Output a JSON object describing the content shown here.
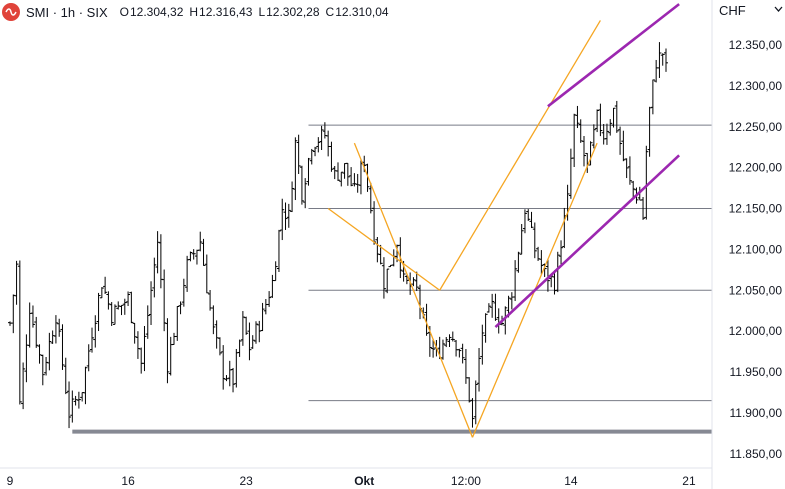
{
  "header": {
    "symbol": "SMI · 1h · SIX",
    "ohlc": [
      {
        "k": "O",
        "v": "12.304,32"
      },
      {
        "k": "H",
        "v": "12.316,43"
      },
      {
        "k": "L",
        "v": "12.302,28"
      },
      {
        "k": "C",
        "v": "12.310,04"
      }
    ],
    "currency": "CHF"
  },
  "colors": {
    "candle": "#000000",
    "hline": "#787b86",
    "support": "#868993",
    "orange": "#f5a623",
    "purple": "#9c27b0",
    "logo": "#e0433a"
  },
  "chart_data": {
    "type": "ohlc",
    "x_unit": "trading hour index (9 bars per day)",
    "x_range": [
      0,
      198
    ],
    "ylim": [
      11830,
      12400
    ],
    "y_ticks": [
      "12.350,00",
      "12.300,00",
      "12.250,00",
      "12.200,00",
      "12.150,00",
      "12.100,00",
      "12.050,00",
      "12.000,00",
      "11.950,00",
      "11.900,00",
      "11.850,00"
    ],
    "y_tick_values": [
      12350,
      12300,
      12250,
      12200,
      12150,
      12100,
      12050,
      12000,
      11950,
      11900,
      11850
    ],
    "x_ticks": [
      {
        "label": "9",
        "x": 0
      },
      {
        "label": "16",
        "x": 36
      },
      {
        "label": "23",
        "x": 72
      },
      {
        "label": "Okt",
        "x": 108
      },
      {
        "label": "12:00",
        "x": 139
      },
      {
        "label": "14",
        "x": 171
      },
      {
        "label": "21",
        "x": 207
      }
    ],
    "anchors": [
      [
        0,
        12010
      ],
      [
        2,
        12080
      ],
      [
        3,
        11910
      ],
      [
        6,
        12030
      ],
      [
        10,
        11950
      ],
      [
        14,
        12020
      ],
      [
        18,
        11900
      ],
      [
        22,
        11930
      ],
      [
        25,
        12000
      ],
      [
        28,
        12060
      ],
      [
        31,
        12020
      ],
      [
        36,
        12040
      ],
      [
        40,
        11960
      ],
      [
        45,
        12110
      ],
      [
        48,
        11960
      ],
      [
        54,
        12080
      ],
      [
        58,
        12110
      ],
      [
        62,
        12000
      ],
      [
        65,
        11950
      ],
      [
        68,
        11940
      ],
      [
        71,
        12010
      ],
      [
        73,
        11980
      ],
      [
        77,
        12020
      ],
      [
        80,
        12060
      ],
      [
        83,
        12150
      ],
      [
        85,
        12140
      ],
      [
        87,
        12230
      ],
      [
        89,
        12170
      ],
      [
        92,
        12230
      ],
      [
        96,
        12240
      ],
      [
        99,
        12190
      ],
      [
        102,
        12200
      ],
      [
        105,
        12170
      ],
      [
        108,
        12210
      ],
      [
        111,
        12120
      ],
      [
        114,
        12060
      ],
      [
        118,
        12110
      ],
      [
        120,
        12060
      ],
      [
        124,
        12050
      ],
      [
        127,
        11990
      ],
      [
        130,
        11970
      ],
      [
        134,
        12000
      ],
      [
        137,
        11980
      ],
      [
        140,
        11920
      ],
      [
        141,
        11890
      ],
      [
        142,
        11930
      ],
      [
        144,
        12000
      ],
      [
        147,
        12030
      ],
      [
        150,
        12010
      ],
      [
        153,
        12050
      ],
      [
        157,
        12150
      ],
      [
        160,
        12100
      ],
      [
        163,
        12070
      ],
      [
        166,
        12060
      ],
      [
        168,
        12110
      ],
      [
        170,
        12160
      ],
      [
        172,
        12260
      ],
      [
        174,
        12230
      ],
      [
        176,
        12200
      ],
      [
        179,
        12260
      ],
      [
        181,
        12240
      ],
      [
        184,
        12270
      ],
      [
        187,
        12210
      ],
      [
        189,
        12180
      ],
      [
        192,
        12160
      ],
      [
        193,
        12140
      ],
      [
        194,
        12220
      ],
      [
        195,
        12270
      ],
      [
        197,
        12330
      ],
      [
        199,
        12340
      ],
      [
        201,
        12300
      ],
      [
        203,
        12310
      ]
    ],
    "horizontal_lines": [
      12252,
      12150,
      12050,
      11915
    ],
    "support_line": 11877,
    "orange_lines": [
      [
        105,
        12230,
        141,
        11870
      ],
      [
        97,
        12150,
        131,
        12050
      ],
      [
        131,
        12050,
        180,
        12380
      ],
      [
        141,
        11870,
        179,
        12230
      ]
    ],
    "purple_lines": [
      [
        164,
        12275,
        204,
        12400
      ],
      [
        148,
        12005,
        204,
        12215
      ]
    ]
  }
}
